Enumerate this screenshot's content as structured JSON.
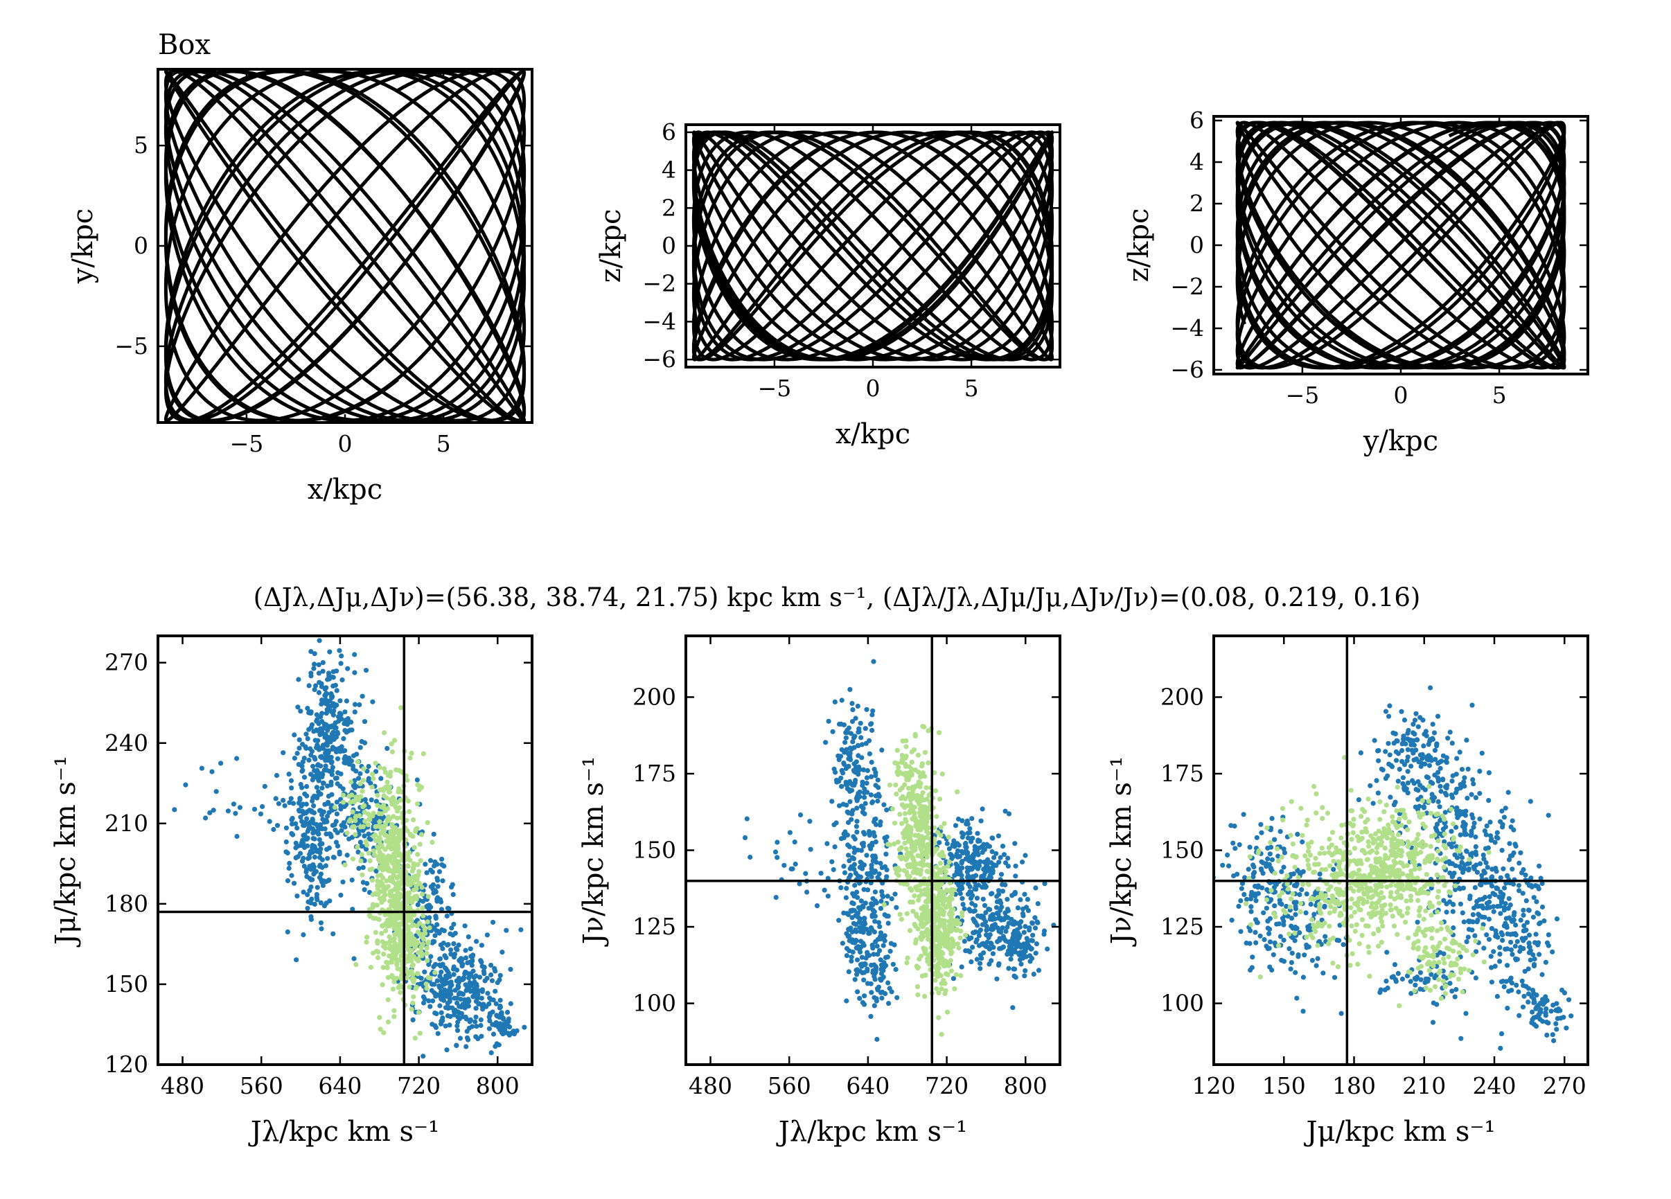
{
  "title": "Box",
  "summary": "(ΔJλ,ΔJμ,ΔJν)=(56.38, 38.74, 21.75) kpc km s⁻¹, (ΔJλ/Jλ,ΔJμ/Jμ,ΔJν/Jν)=(0.08, 0.219, 0.16)",
  "chart_data": [
    {
      "type": "line",
      "panel": "orbit-xy",
      "xlabel": "x/kpc",
      "ylabel": "y/kpc",
      "xlim": [
        -9.5,
        9.5
      ],
      "ylim": [
        -8.8,
        8.8
      ],
      "xticks": [
        -5,
        0,
        5
      ],
      "yticks": [
        -5,
        0,
        5
      ],
      "orbit": {
        "ax": 9.1,
        "ay": 8.7,
        "wx": 1.0,
        "wy": 1.25,
        "loops": 15,
        "color": "#000000"
      }
    },
    {
      "type": "line",
      "panel": "orbit-xz",
      "xlabel": "x/kpc",
      "ylabel": "z/kpc",
      "xlim": [
        -9.5,
        9.5
      ],
      "ylim": [
        -6.4,
        6.4
      ],
      "xticks": [
        -5,
        0,
        5
      ],
      "yticks": [
        -6,
        -4,
        -2,
        0,
        2,
        4,
        6
      ],
      "orbit": {
        "ax": 9.1,
        "ay": 6.0,
        "wx": 1.0,
        "wy": 1.7,
        "loops": 15,
        "color": "#000000"
      }
    },
    {
      "type": "line",
      "panel": "orbit-yz",
      "xlabel": "y/kpc",
      "ylabel": "z/kpc",
      "xlim": [
        -9.5,
        9.5
      ],
      "ylim": [
        -6.2,
        6.2
      ],
      "xticks": [
        -5,
        0,
        5
      ],
      "yticks": [
        -6,
        -4,
        -2,
        0,
        2,
        4,
        6
      ],
      "orbit": {
        "ax": 8.3,
        "ay": 5.9,
        "wx": 1.25,
        "wy": 1.7,
        "loops": 15,
        "color": "#000000"
      }
    },
    {
      "type": "scatter",
      "panel": "jl-jm",
      "xlabel": "Jλ/kpc km s⁻¹",
      "ylabel": "Jμ/kpc km s⁻¹",
      "xlim": [
        455,
        835
      ],
      "ylim": [
        120,
        280
      ],
      "xticks": [
        480,
        560,
        640,
        720,
        800
      ],
      "yticks": [
        120,
        150,
        180,
        210,
        240,
        270
      ],
      "vline": 705,
      "hline": 177,
      "series": [
        {
          "color": "#1f78b4",
          "clusters": [
            {
              "x": 630,
              "y": 245,
              "sx": 14,
              "sy": 14,
              "n": 260
            },
            {
              "x": 612,
              "y": 205,
              "sx": 14,
              "sy": 16,
              "n": 240
            },
            {
              "x": 662,
              "y": 210,
              "sx": 16,
              "sy": 12,
              "n": 160
            },
            {
              "x": 730,
              "y": 172,
              "sx": 14,
              "sy": 18,
              "n": 160
            },
            {
              "x": 765,
              "y": 148,
              "sx": 20,
              "sy": 10,
              "n": 280
            },
            {
              "x": 805,
              "y": 135,
              "sx": 6,
              "sy": 4,
              "n": 50
            },
            {
              "x": 545,
              "y": 217,
              "sx": 32,
              "sy": 9,
              "n": 25
            }
          ]
        },
        {
          "color": "#b2df8a",
          "clusters": [
            {
              "x": 692,
              "y": 198,
              "sx": 12,
              "sy": 18,
              "n": 420
            },
            {
              "x": 705,
              "y": 168,
              "sx": 11,
              "sy": 14,
              "n": 340
            },
            {
              "x": 655,
              "y": 212,
              "sx": 7,
              "sy": 8,
              "n": 40
            }
          ]
        }
      ]
    },
    {
      "type": "scatter",
      "panel": "jl-jn",
      "xlabel": "Jλ/kpc km s⁻¹",
      "ylabel": "Jν/kpc km s⁻¹",
      "xlim": [
        455,
        835
      ],
      "ylim": [
        80,
        220
      ],
      "xticks": [
        480,
        560,
        640,
        720,
        800
      ],
      "yticks": [
        100,
        125,
        150,
        175,
        200
      ],
      "vline": 705,
      "hline": 140,
      "series": [
        {
          "color": "#1f78b4",
          "clusters": [
            {
              "x": 628,
              "y": 175,
              "sx": 14,
              "sy": 12,
              "n": 160
            },
            {
              "x": 636,
              "y": 132,
              "sx": 14,
              "sy": 16,
              "n": 260
            },
            {
              "x": 650,
              "y": 108,
              "sx": 8,
              "sy": 6,
              "n": 50
            },
            {
              "x": 745,
              "y": 146,
              "sx": 18,
              "sy": 6,
              "n": 220
            },
            {
              "x": 770,
              "y": 125,
              "sx": 22,
              "sy": 8,
              "n": 220
            },
            {
              "x": 795,
              "y": 118,
              "sx": 9,
              "sy": 4,
              "n": 60
            },
            {
              "x": 560,
              "y": 148,
              "sx": 35,
              "sy": 9,
              "n": 30
            }
          ]
        },
        {
          "color": "#b2df8a",
          "clusters": [
            {
              "x": 692,
              "y": 155,
              "sx": 11,
              "sy": 14,
              "n": 380
            },
            {
              "x": 712,
              "y": 125,
              "sx": 10,
              "sy": 10,
              "n": 360
            },
            {
              "x": 676,
              "y": 178,
              "sx": 5,
              "sy": 4,
              "n": 30
            }
          ]
        }
      ]
    },
    {
      "type": "scatter",
      "panel": "jm-jn",
      "xlabel": "Jμ/kpc km s⁻¹",
      "ylabel": "Jν/kpc km s⁻¹",
      "xlim": [
        120,
        280
      ],
      "ylim": [
        80,
        220
      ],
      "xticks": [
        120,
        150,
        180,
        210,
        240,
        270
      ],
      "yticks": [
        100,
        125,
        150,
        175,
        200
      ],
      "vline": 177,
      "hline": 140,
      "series": [
        {
          "color": "#1f78b4",
          "clusters": [
            {
              "x": 142,
              "y": 138,
              "sx": 7,
              "sy": 12,
              "n": 160
            },
            {
              "x": 160,
              "y": 128,
              "sx": 8,
              "sy": 12,
              "n": 100
            },
            {
              "x": 205,
              "y": 180,
              "sx": 9,
              "sy": 9,
              "n": 160
            },
            {
              "x": 222,
              "y": 160,
              "sx": 9,
              "sy": 12,
              "n": 140
            },
            {
              "x": 232,
              "y": 138,
              "sx": 9,
              "sy": 10,
              "n": 130
            },
            {
              "x": 250,
              "y": 126,
              "sx": 8,
              "sy": 14,
              "n": 190
            },
            {
              "x": 260,
              "y": 98,
              "sx": 5,
              "sy": 4,
              "n": 60
            },
            {
              "x": 210,
              "y": 108,
              "sx": 9,
              "sy": 6,
              "n": 60
            }
          ]
        },
        {
          "color": "#b2df8a",
          "clusters": [
            {
              "x": 180,
              "y": 140,
              "sx": 18,
              "sy": 12,
              "n": 460
            },
            {
              "x": 200,
              "y": 145,
              "sx": 12,
              "sy": 10,
              "n": 220
            },
            {
              "x": 218,
              "y": 115,
              "sx": 8,
              "sy": 7,
              "n": 90
            }
          ]
        }
      ]
    }
  ]
}
